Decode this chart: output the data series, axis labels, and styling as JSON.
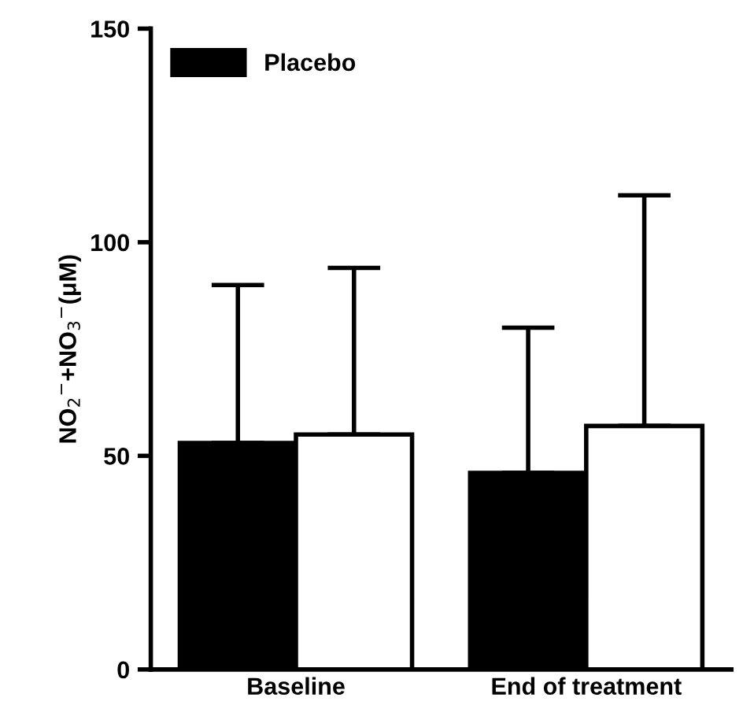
{
  "chart_data": {
    "type": "bar",
    "ylabel": "NO$_{2}$$^{−}$+NO$_{3}$$^{−}$(μM)",
    "categories": [
      "Baseline",
      "End of treatment"
    ],
    "series": [
      {
        "name": "Placebo",
        "color": "#000000",
        "values": [
          53,
          46
        ],
        "errors": [
          [
            53,
            90
          ],
          [
            46,
            80
          ]
        ]
      },
      {
        "color": "#ffffff",
        "values": [
          55,
          57
        ],
        "errors": [
          [
            55,
            94
          ],
          [
            57,
            111
          ]
        ]
      }
    ],
    "ylim": [
      0,
      150
    ],
    "yticks": [
      0,
      50,
      100,
      150
    ],
    "grid": false,
    "legend": "top left"
  }
}
